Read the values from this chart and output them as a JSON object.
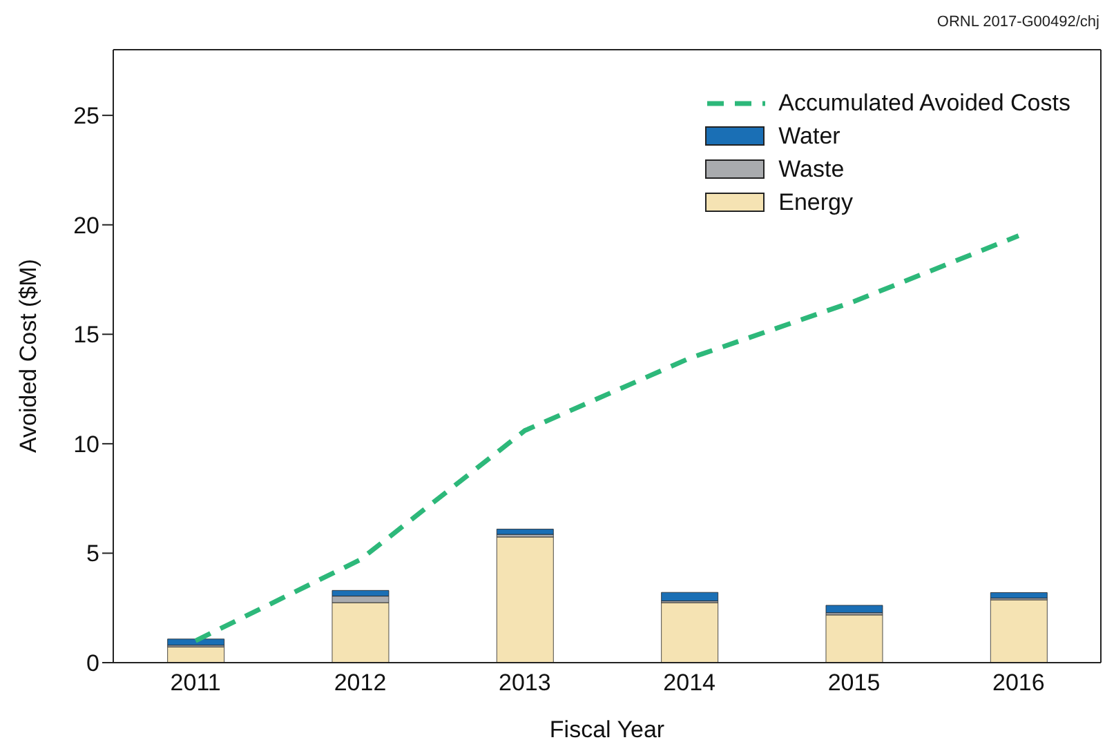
{
  "chart_data": {
    "type": "bar",
    "stacked": true,
    "xlabel": "Fiscal Year",
    "ylabel": "Avoided Cost ($M)",
    "categories": [
      "2011",
      "2012",
      "2013",
      "2014",
      "2015",
      "2016"
    ],
    "series": [
      {
        "name": "Energy",
        "color": "#f5e3b3",
        "values": [
          0.72,
          2.74,
          5.74,
          2.74,
          2.18,
          2.87
        ]
      },
      {
        "name": "Waste",
        "color": "#a9abae",
        "values": [
          0.08,
          0.3,
          0.12,
          0.08,
          0.1,
          0.08
        ]
      },
      {
        "name": "Water",
        "color": "#1a6fb5",
        "values": [
          0.28,
          0.26,
          0.24,
          0.39,
          0.34,
          0.25
        ]
      },
      {
        "name": "Accumulated Avoided Costs",
        "type": "line",
        "color": "#2db87a",
        "line_style": "dashed",
        "marker": "none",
        "values": [
          1.0,
          4.7,
          10.6,
          13.9,
          16.5,
          19.5
        ]
      }
    ],
    "ylim": [
      0,
      28
    ],
    "yticks": [
      0,
      5,
      10,
      15,
      20,
      25
    ],
    "legend": "top right",
    "annotations": [
      "ORNL 2017-G00492/chj"
    ]
  }
}
